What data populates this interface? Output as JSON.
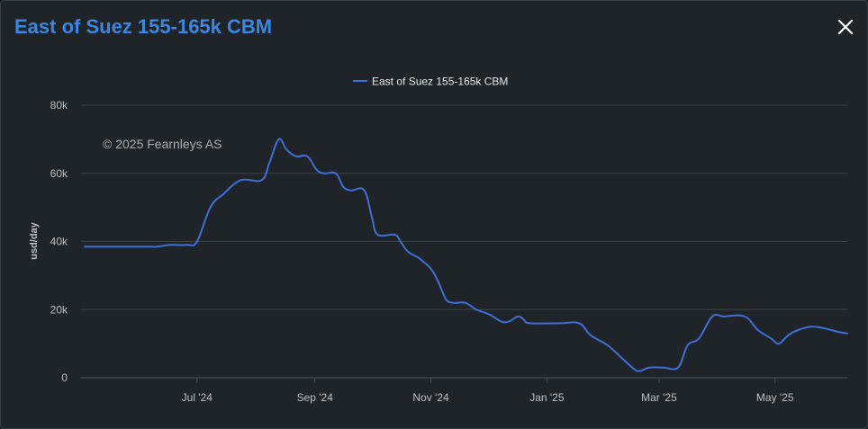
{
  "modal": {
    "title": "East of Suez 155-165k CBM",
    "close_icon": "close-icon"
  },
  "colors": {
    "title": "#3d86e0",
    "series": "#3f6fd6",
    "background": "#1f2429",
    "grid": "#3a4047"
  },
  "chart_data": {
    "type": "line",
    "title": "",
    "ylabel": "usd/day",
    "xlabel": "",
    "ylim": [
      0,
      80000
    ],
    "y_ticks": [
      {
        "value": 0,
        "label": "0"
      },
      {
        "value": 20000,
        "label": "20k"
      },
      {
        "value": 40000,
        "label": "40k"
      },
      {
        "value": 60000,
        "label": "60k"
      },
      {
        "value": 80000,
        "label": "80k"
      }
    ],
    "xlim": [
      "2024-05-01",
      "2025-06-08"
    ],
    "x_ticks": [
      {
        "date": "2024-07-01",
        "label": "Jul '24"
      },
      {
        "date": "2024-09-01",
        "label": "Sep '24"
      },
      {
        "date": "2024-11-01",
        "label": "Nov '24"
      },
      {
        "date": "2025-01-01",
        "label": "Jan '25"
      },
      {
        "date": "2025-03-01",
        "label": "Mar '25"
      },
      {
        "date": "2025-05-01",
        "label": "May '25"
      }
    ],
    "grid": true,
    "legend_position": "top-center",
    "credit": "© 2025 Fearnleys AS",
    "series": [
      {
        "name": "East of Suez 155-165k CBM",
        "color": "#3f6fd6",
        "points": [
          [
            "2024-05-03",
            38500
          ],
          [
            "2024-06-02",
            38500
          ],
          [
            "2024-06-10",
            38500
          ],
          [
            "2024-06-17",
            39000
          ],
          [
            "2024-06-26",
            39000
          ],
          [
            "2024-07-01",
            40000
          ],
          [
            "2024-07-08",
            50000
          ],
          [
            "2024-07-15",
            54000
          ],
          [
            "2024-07-24",
            58000
          ],
          [
            "2024-08-04",
            58000
          ],
          [
            "2024-08-08",
            63000
          ],
          [
            "2024-08-13",
            70000
          ],
          [
            "2024-08-17",
            67000
          ],
          [
            "2024-08-22",
            65000
          ],
          [
            "2024-08-28",
            65000
          ],
          [
            "2024-09-02",
            61000
          ],
          [
            "2024-09-06",
            60000
          ],
          [
            "2024-09-12",
            60000
          ],
          [
            "2024-09-16",
            56000
          ],
          [
            "2024-09-20",
            55000
          ],
          [
            "2024-09-27",
            55000
          ],
          [
            "2024-10-01",
            47000
          ],
          [
            "2024-10-04",
            42000
          ],
          [
            "2024-10-13",
            42000
          ],
          [
            "2024-10-16",
            40000
          ],
          [
            "2024-10-20",
            37000
          ],
          [
            "2024-10-26",
            35000
          ],
          [
            "2024-11-01",
            32000
          ],
          [
            "2024-11-05",
            28000
          ],
          [
            "2024-11-09",
            23000
          ],
          [
            "2024-11-13",
            22000
          ],
          [
            "2024-11-19",
            22000
          ],
          [
            "2024-11-25",
            20000
          ],
          [
            "2024-12-02",
            18500
          ],
          [
            "2024-12-08",
            16500
          ],
          [
            "2024-12-12",
            16500
          ],
          [
            "2024-12-17",
            18000
          ],
          [
            "2024-12-20",
            17000
          ],
          [
            "2024-12-23",
            16000
          ],
          [
            "2025-01-08",
            16000
          ],
          [
            "2025-01-18",
            16000
          ],
          [
            "2025-01-24",
            12500
          ],
          [
            "2025-02-02",
            9500
          ],
          [
            "2025-02-09",
            6000
          ],
          [
            "2025-02-16",
            2500
          ],
          [
            "2025-02-19",
            2000
          ],
          [
            "2025-02-24",
            3000
          ],
          [
            "2025-03-03",
            3000
          ],
          [
            "2025-03-11",
            3000
          ],
          [
            "2025-03-16",
            9500
          ],
          [
            "2025-03-22",
            11500
          ],
          [
            "2025-03-29",
            18000
          ],
          [
            "2025-04-04",
            18000
          ],
          [
            "2025-04-15",
            18000
          ],
          [
            "2025-04-22",
            14000
          ],
          [
            "2025-04-29",
            11500
          ],
          [
            "2025-05-03",
            10000
          ],
          [
            "2025-05-08",
            12500
          ],
          [
            "2025-05-13",
            14000
          ],
          [
            "2025-05-20",
            15000
          ],
          [
            "2025-05-27",
            14500
          ],
          [
            "2025-06-03",
            13500
          ],
          [
            "2025-06-08",
            13000
          ]
        ]
      }
    ]
  }
}
